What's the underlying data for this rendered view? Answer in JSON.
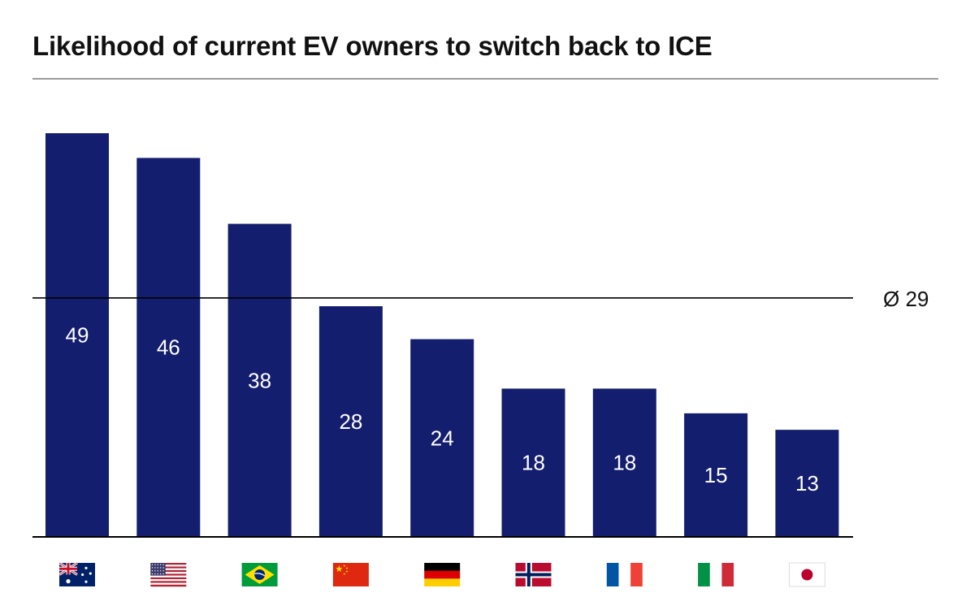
{
  "title": "Likelihood of current EV owners to switch back to ICE",
  "chart_data": {
    "type": "bar",
    "categories": [
      "Australia",
      "United States",
      "Brazil",
      "China",
      "Germany",
      "Norway",
      "France",
      "Italy",
      "Japan"
    ],
    "category_display": "flag-icons",
    "values": [
      49,
      46,
      38,
      28,
      24,
      18,
      18,
      15,
      13
    ],
    "average": 29,
    "average_label": "Ø 29",
    "ylim": [
      0,
      55
    ],
    "grid": false,
    "legend": "none",
    "bar_color": "#141e6e",
    "flags": [
      "australia-flag-icon",
      "united-states-flag-icon",
      "brazil-flag-icon",
      "china-flag-icon",
      "germany-flag-icon",
      "norway-flag-icon",
      "france-flag-icon",
      "italy-flag-icon",
      "japan-flag-icon"
    ]
  }
}
